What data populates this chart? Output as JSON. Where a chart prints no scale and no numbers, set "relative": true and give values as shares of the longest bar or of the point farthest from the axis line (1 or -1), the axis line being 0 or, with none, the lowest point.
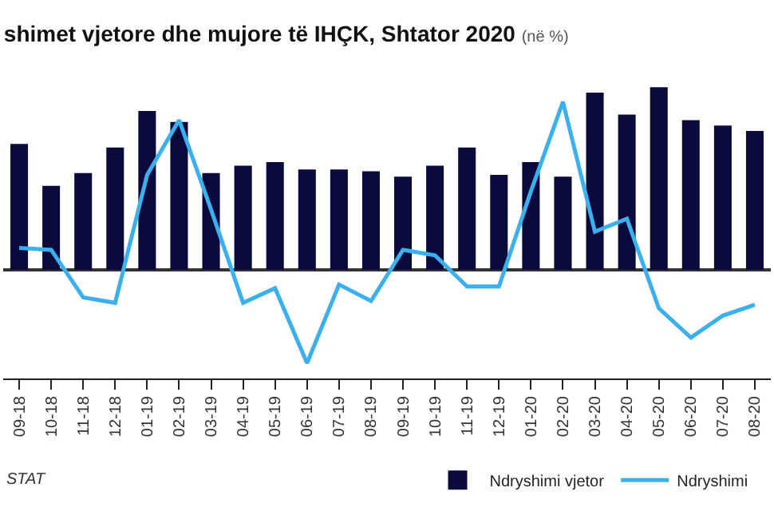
{
  "chart_data": {
    "type": "bar",
    "title": "shimet vjetore dhe mujore të IHÇK, Shtator 2020",
    "subtitle": "(në %)",
    "relative": true,
    "legend": "bottom right",
    "categories": [
      "09-18",
      "10-18",
      "11-18",
      "12-18",
      "01-19",
      "02-19",
      "03-19",
      "04-19",
      "05-19",
      "06-19",
      "07-19",
      "08-19",
      "09-19",
      "10-19",
      "11-19",
      "12-19",
      "01-20",
      "02-20",
      "03-20",
      "04-20",
      "05-20",
      "06-20",
      "07-20",
      "08-20"
    ],
    "series": [
      {
        "name": "Ndryshimi vjetor",
        "color": "#0a0a3c",
        "values": [
          0.69,
          0.46,
          0.53,
          0.67,
          0.87,
          0.81,
          0.53,
          0.57,
          0.59,
          0.55,
          0.55,
          0.54,
          0.51,
          0.57,
          0.67,
          0.52,
          0.59,
          0.51,
          0.97,
          0.85,
          1,
          0.82,
          0.79,
          0.76
        ]
      },
      {
        "name": "Ndryshimi",
        "type": "line",
        "color": "#3bb0ef",
        "values": [
          0.12,
          0.11,
          -0.15,
          -0.18,
          0.52,
          0.82,
          0.33,
          -0.18,
          -0.1,
          -0.51,
          -0.08,
          -0.17,
          0.11,
          0.08,
          -0.09,
          -0.09,
          0.43,
          0.92,
          0.21,
          0.28,
          -0.21,
          -0.37,
          -0.25,
          -0.19
        ]
      }
    ],
    "annotations": [
      "STAT"
    ]
  }
}
